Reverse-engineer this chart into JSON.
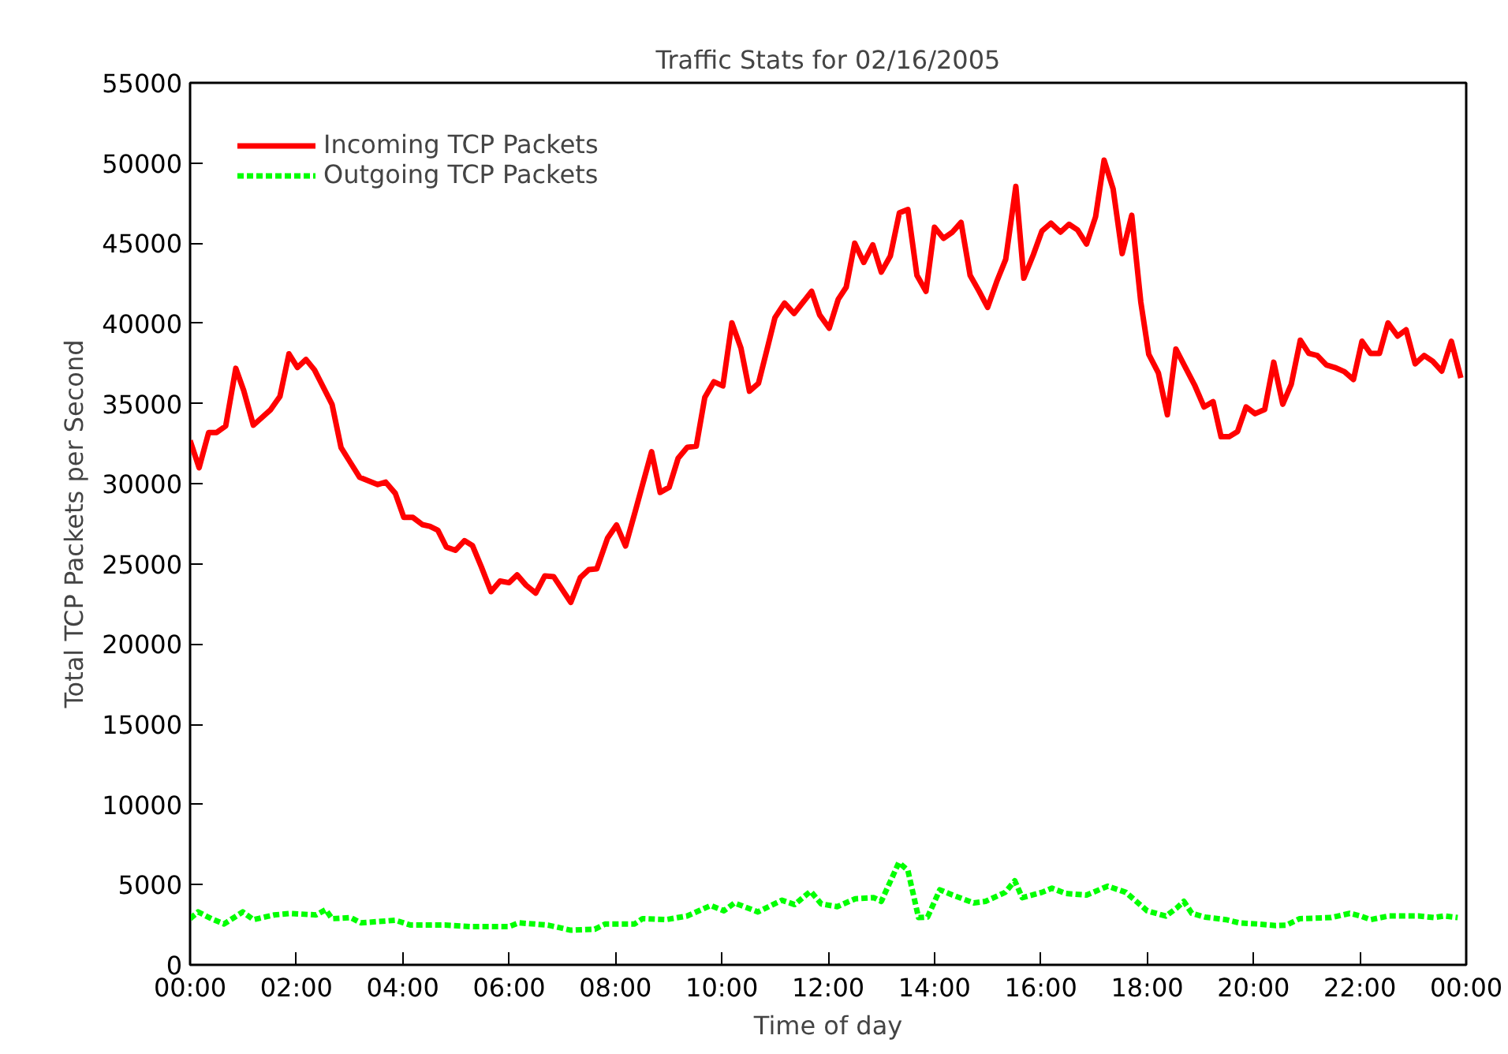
{
  "chart_data": {
    "type": "line",
    "title": "Traffic Stats for 02/16/2005",
    "xlabel": "Time of day",
    "ylabel": "Total TCP Packets per Second",
    "xlim": [
      0,
      24
    ],
    "xticks": [
      {
        "value": 0,
        "label": "00:00"
      },
      {
        "value": 2,
        "label": "02:00"
      },
      {
        "value": 4,
        "label": "04:00"
      },
      {
        "value": 6,
        "label": "06:00"
      },
      {
        "value": 8,
        "label": "08:00"
      },
      {
        "value": 10,
        "label": "10:00"
      },
      {
        "value": 12,
        "label": "12:00"
      },
      {
        "value": 14,
        "label": "14:00"
      },
      {
        "value": 16,
        "label": "16:00"
      },
      {
        "value": 18,
        "label": "18:00"
      },
      {
        "value": 20,
        "label": "20:00"
      },
      {
        "value": 22,
        "label": "22:00"
      },
      {
        "value": 24,
        "label": "00:00"
      }
    ],
    "ylim": [
      0,
      55000
    ],
    "yticks": [
      0,
      5000,
      10000,
      15000,
      20000,
      25000,
      30000,
      35000,
      40000,
      45000,
      50000,
      55000
    ],
    "grid": false,
    "legend": "top left",
    "marker": "none",
    "series": [
      {
        "name": "Incoming TCP Packets",
        "color": "#ff0000",
        "line_style": "solid",
        "x": [
          0,
          0.17,
          0.35,
          0.5,
          0.67,
          0.86,
          1.01,
          1.19,
          1.51,
          1.69,
          1.86,
          2.02,
          2.18,
          2.34,
          2.67,
          2.84,
          3.01,
          3.19,
          3.53,
          3.68,
          3.86,
          4.02,
          4.19,
          4.37,
          4.51,
          4.66,
          4.82,
          4.99,
          5.16,
          5.31,
          5.48,
          5.66,
          5.83,
          6.0,
          6.15,
          6.32,
          6.5,
          6.67,
          6.84,
          7.16,
          7.34,
          7.5,
          7.65,
          7.85,
          8.02,
          8.19,
          8.37,
          8.68,
          8.84,
          9.01,
          9.18,
          9.35,
          9.52,
          9.68,
          9.85,
          10.02,
          10.19,
          10.36,
          10.52,
          10.69,
          10.84,
          11.0,
          11.18,
          11.36,
          11.69,
          11.84,
          12.02,
          12.19,
          12.34,
          12.5,
          12.67,
          12.84,
          13.0,
          13.17,
          13.34,
          13.5,
          13.67,
          13.84,
          14.0,
          14.17,
          14.34,
          14.5,
          14.67,
          14.84,
          15.0,
          15.17,
          15.34,
          15.53,
          15.68,
          15.86,
          16.02,
          16.19,
          16.37,
          16.53,
          16.69,
          16.86,
          17.03,
          17.19,
          17.36,
          17.53,
          17.71,
          17.88,
          18.03,
          18.21,
          18.38,
          18.54,
          18.72,
          18.89,
          19.07,
          19.24,
          19.39,
          19.54,
          19.7,
          19.86,
          20.03,
          20.21,
          20.38,
          20.55,
          20.71,
          20.88,
          21.04,
          21.2,
          21.37,
          21.53,
          21.71,
          21.88,
          22.04,
          22.2,
          22.37,
          22.53,
          22.71,
          22.87,
          23.04,
          23.21,
          23.37,
          23.54,
          23.72,
          23.9
        ],
        "values": [
          32700,
          31000,
          33200,
          33200,
          33600,
          37200,
          35800,
          33650,
          34600,
          35450,
          38100,
          37250,
          37750,
          37100,
          34950,
          32250,
          31350,
          30400,
          29950,
          30100,
          29400,
          27900,
          27900,
          27450,
          27350,
          27100,
          26050,
          25850,
          26450,
          26150,
          24800,
          23270,
          23930,
          23830,
          24320,
          23670,
          23180,
          24250,
          24200,
          22600,
          24150,
          24650,
          24700,
          26600,
          27430,
          26120,
          28250,
          32000,
          29460,
          29780,
          31600,
          32270,
          32340,
          35380,
          36360,
          36100,
          40030,
          38460,
          35770,
          36260,
          38230,
          40360,
          41270,
          40620,
          42000,
          40530,
          39700,
          41500,
          42260,
          45000,
          43800,
          44900,
          43200,
          44200,
          46900,
          47100,
          43000,
          42000,
          46000,
          45300,
          45700,
          46300,
          43000,
          42000,
          41000,
          42600,
          44000,
          48540,
          42820,
          44290,
          45760,
          46250,
          45690,
          46180,
          45830,
          44950,
          46650,
          50180,
          48380,
          44350,
          46740,
          41340,
          38070,
          36920,
          34300,
          38400,
          37250,
          36170,
          34790,
          35120,
          32930,
          32930,
          33260,
          34790,
          34370,
          34630,
          37580,
          34960,
          36200,
          38950,
          38130,
          38000,
          37410,
          37250,
          36990,
          36500,
          38890,
          38130,
          38130,
          40030,
          39210,
          39600,
          37480,
          38000,
          37640,
          37020,
          38890,
          36600
        ]
      },
      {
        "name": "Outgoing TCP Packets",
        "color": "#00ff00",
        "line_style": "dashed",
        "x": [
          0,
          0.15,
          0.4,
          0.64,
          0.99,
          1.19,
          1.58,
          1.88,
          2.37,
          2.55,
          2.67,
          3.02,
          3.21,
          3.86,
          4.15,
          4.79,
          5.27,
          6.0,
          6.18,
          6.73,
          7.16,
          7.61,
          7.81,
          8.36,
          8.51,
          8.95,
          9.35,
          9.79,
          10.04,
          10.24,
          10.68,
          11.13,
          11.37,
          11.67,
          11.87,
          12.17,
          12.51,
          12.86,
          13.0,
          13.33,
          13.5,
          13.7,
          13.87,
          14.1,
          14.34,
          14.74,
          14.96,
          15.33,
          15.51,
          15.65,
          16.02,
          16.21,
          16.47,
          16.86,
          17.26,
          17.6,
          18.0,
          18.35,
          18.55,
          18.69,
          18.84,
          19.09,
          19.48,
          19.73,
          20.08,
          20.42,
          20.62,
          20.87,
          21.46,
          21.81,
          22.01,
          22.2,
          22.55,
          23.1,
          23.39,
          23.59,
          23.84
        ],
        "values": [
          2880,
          3300,
          2880,
          2550,
          3300,
          2820,
          3110,
          3210,
          3110,
          3440,
          2880,
          2950,
          2620,
          2780,
          2480,
          2480,
          2390,
          2390,
          2620,
          2480,
          2160,
          2220,
          2550,
          2550,
          2880,
          2820,
          3050,
          3700,
          3370,
          3860,
          3300,
          4030,
          3760,
          4590,
          3800,
          3630,
          4120,
          4190,
          3960,
          6380,
          5890,
          2950,
          2980,
          4680,
          4350,
          3860,
          3960,
          4520,
          5240,
          4190,
          4520,
          4780,
          4450,
          4350,
          4910,
          4520,
          3370,
          3040,
          3530,
          3960,
          3210,
          2980,
          2820,
          2620,
          2550,
          2450,
          2480,
          2880,
          2950,
          3210,
          3050,
          2820,
          3050,
          3050,
          2950,
          3050,
          2950
        ]
      }
    ]
  }
}
